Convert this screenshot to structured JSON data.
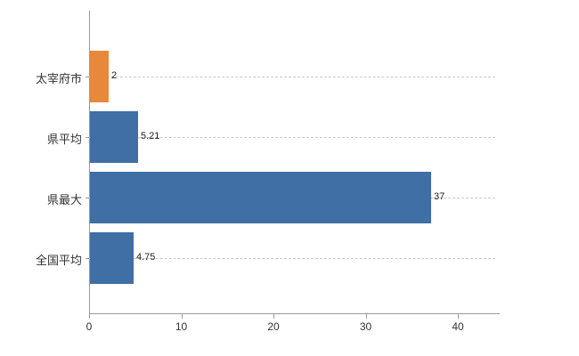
{
  "chart_data": {
    "type": "bar",
    "orientation": "horizontal",
    "title": "",
    "xlabel": "",
    "ylabel": "",
    "categories": [
      "太宰府市",
      "県平均",
      "県最大",
      "全国平均"
    ],
    "values": [
      2,
      5.21,
      37,
      4.75
    ],
    "value_labels": [
      "2",
      "5.21",
      "37",
      "4.75"
    ],
    "bar_colors": [
      "#e8883a",
      "#3f6fa5",
      "#3f6fa5",
      "#3f6fa5"
    ],
    "xlim": [
      0,
      44.5
    ],
    "x_ticks": [
      0,
      10,
      20,
      30,
      40
    ],
    "x_tick_labels": [
      "0",
      "10",
      "20",
      "30",
      "40"
    ],
    "grid": "dashed horizontal lines at category centers",
    "legend": "none",
    "colors": {
      "highlight_orange": "#e8883a",
      "series_blue": "#3f6fa5",
      "axis": "#9a9a9a",
      "gridline": "#c9c9c9",
      "text": "#333333"
    }
  }
}
